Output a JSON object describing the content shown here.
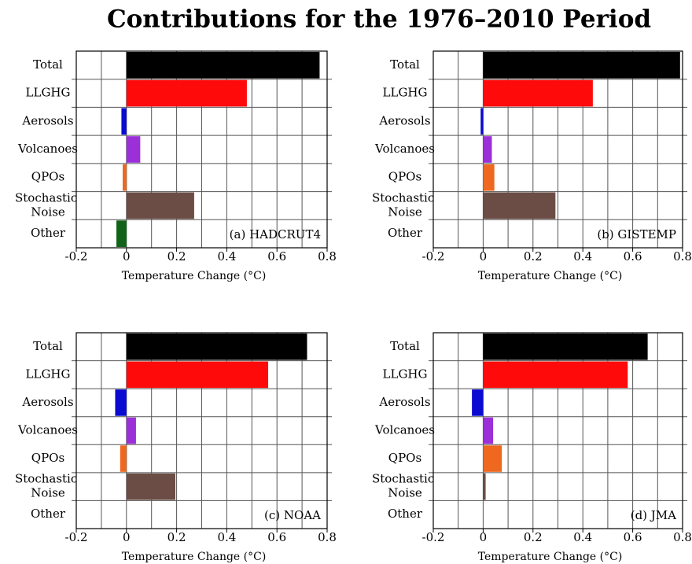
{
  "title": "Contributions for the 1976–2010 Period",
  "chart_data": [
    {
      "type": "bar",
      "orientation": "horizontal",
      "annotation": "(a) HADCRUT4",
      "xlabel": "Temperature Change (°C)",
      "categories": [
        "Total",
        "LLGHG",
        "Aerosols",
        "Volcanoes",
        "QPOs",
        "Stochastic Noise",
        "Other"
      ],
      "values": [
        0.77,
        0.48,
        -0.02,
        0.055,
        -0.015,
        0.27,
        -0.04
      ],
      "colors": [
        "#000000",
        "#ff0a0a",
        "#0a0ad0",
        "#9b30d8",
        "#ee6820",
        "#6b4d45",
        "#12621a"
      ],
      "xlim": [
        -0.2,
        0.8
      ],
      "xticks": [
        -0.2,
        0,
        0.2,
        0.4,
        0.6,
        0.8
      ],
      "xminor": [
        -0.1,
        0.1,
        0.3,
        0.5,
        0.7
      ],
      "grid": true
    },
    {
      "type": "bar",
      "orientation": "horizontal",
      "annotation": "(b) GISTEMP",
      "xlabel": "Temperature Change (°C)",
      "categories": [
        "Total",
        "LLGHG",
        "Aerosols",
        "Volcanoes",
        "QPOs",
        "Stochastic Noise",
        "Other"
      ],
      "values": [
        0.79,
        0.44,
        -0.01,
        0.035,
        0.045,
        0.29,
        0
      ],
      "colors": [
        "#000000",
        "#ff0a0a",
        "#0a0ad0",
        "#9b30d8",
        "#ee6820",
        "#6b4d45",
        "#12621a"
      ],
      "xlim": [
        -0.2,
        0.8
      ],
      "xticks": [
        -0.2,
        0,
        0.2,
        0.4,
        0.6,
        0.8
      ],
      "xminor": [
        -0.1,
        0.1,
        0.3,
        0.5,
        0.7
      ],
      "grid": true
    },
    {
      "type": "bar",
      "orientation": "horizontal",
      "annotation": "(c) NOAA",
      "xlabel": "Temperature Change (°C)",
      "categories": [
        "Total",
        "LLGHG",
        "Aerosols",
        "Volcanoes",
        "QPOs",
        "Stochastic Noise",
        "Other"
      ],
      "values": [
        0.72,
        0.565,
        -0.045,
        0.038,
        -0.025,
        0.195,
        0
      ],
      "colors": [
        "#000000",
        "#ff0a0a",
        "#0a0ad0",
        "#9b30d8",
        "#ee6820",
        "#6b4d45",
        "#12621a"
      ],
      "xlim": [
        -0.2,
        0.8
      ],
      "xticks": [
        -0.2,
        0,
        0.2,
        0.4,
        0.6,
        0.8
      ],
      "xminor": [
        -0.1,
        0.1,
        0.3,
        0.5,
        0.7
      ],
      "grid": true
    },
    {
      "type": "bar",
      "orientation": "horizontal",
      "annotation": "(d) JMA",
      "xlabel": "Temperature Change (°C)",
      "categories": [
        "Total",
        "LLGHG",
        "Aerosols",
        "Volcanoes",
        "QPOs",
        "Stochastic Noise",
        "Other"
      ],
      "values": [
        0.66,
        0.58,
        -0.045,
        0.04,
        0.075,
        0.01,
        0
      ],
      "colors": [
        "#000000",
        "#ff0a0a",
        "#0a0ad0",
        "#9b30d8",
        "#ee6820",
        "#6b4d45",
        "#12621a"
      ],
      "xlim": [
        -0.2,
        0.8
      ],
      "xticks": [
        -0.2,
        0,
        0.2,
        0.4,
        0.6,
        0.8
      ],
      "xminor": [
        -0.1,
        0.1,
        0.3,
        0.5,
        0.7
      ],
      "grid": true
    }
  ]
}
